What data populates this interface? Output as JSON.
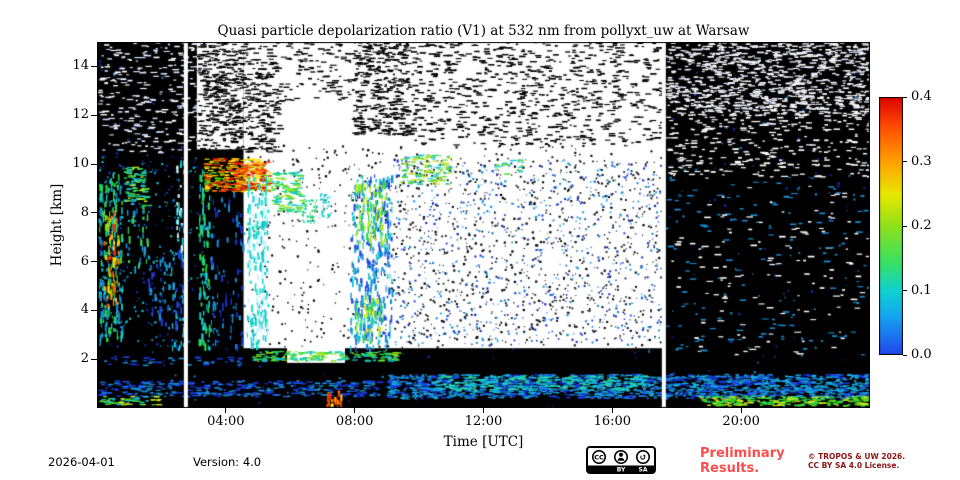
{
  "chart_data": {
    "type": "heatmap",
    "title": "Quasi particle depolarization ratio (V1) at 532 nm from pollyxt_uw at Warsaw",
    "xlabel": "Time [UTC]",
    "ylabel": "Height [km]",
    "xlim": [
      0,
      24
    ],
    "ylim": [
      0,
      15
    ],
    "x_ticks": [
      {
        "v": 4,
        "label": "04:00"
      },
      {
        "v": 8,
        "label": "08:00"
      },
      {
        "v": 12,
        "label": "12:00"
      },
      {
        "v": 16,
        "label": "16:00"
      },
      {
        "v": 20,
        "label": "20:00"
      }
    ],
    "y_ticks": [
      {
        "v": 2,
        "label": "2"
      },
      {
        "v": 4,
        "label": "4"
      },
      {
        "v": 6,
        "label": "6"
      },
      {
        "v": 8,
        "label": "8"
      },
      {
        "v": 10,
        "label": "10"
      },
      {
        "v": 12,
        "label": "12"
      },
      {
        "v": 14,
        "label": "14"
      }
    ],
    "colorbar": {
      "min": 0.0,
      "max": 0.4,
      "ticks": [
        {
          "v": 0.0,
          "label": "0.0"
        },
        {
          "v": 0.1,
          "label": "0.1"
        },
        {
          "v": 0.2,
          "label": "0.2"
        },
        {
          "v": 0.3,
          "label": "0.3"
        },
        {
          "v": 0.4,
          "label": "0.4"
        }
      ],
      "stops": [
        [
          0.0,
          "#2244ee"
        ],
        [
          0.15,
          "#14a6f0"
        ],
        [
          0.25,
          "#10d2cf"
        ],
        [
          0.35,
          "#35e06a"
        ],
        [
          0.5,
          "#8fe019"
        ],
        [
          0.62,
          "#e8e800"
        ],
        [
          0.75,
          "#ffa000"
        ],
        [
          0.88,
          "#ff5000"
        ],
        [
          1.0,
          "#dd0000"
        ]
      ]
    },
    "background": "#000000",
    "no_data_color": "#ffffff",
    "gap_times_utc": [
      2.76,
      17.6
    ],
    "features": [
      {
        "type": "rect",
        "t": [
          0,
          24
        ],
        "h": [
          0,
          15
        ],
        "color": "#000000"
      },
      {
        "type": "noise",
        "t": [
          0,
          24
        ],
        "h": [
          0,
          15
        ],
        "colors": [
          "#1432c8",
          "#1a8cd8"
        ],
        "density": 0.004,
        "style": "dot"
      },
      {
        "type": "noise",
        "t": [
          0,
          3.1
        ],
        "h": [
          10.5,
          15
        ],
        "colors": [
          "#ffffff",
          "#cfe0ff"
        ],
        "density": 0.1,
        "style": "h"
      },
      {
        "type": "noise",
        "t": [
          0,
          3.1
        ],
        "h": [
          2.5,
          10.5
        ],
        "colors": [
          "#1690d8",
          "#17c8d0",
          "#1432c8"
        ],
        "density": 0.03,
        "style": "dot"
      },
      {
        "type": "noise",
        "t": [
          0.05,
          0.78
        ],
        "h": [
          2.8,
          9.6
        ],
        "colors": [
          "#17c8d0",
          "#2ad84e",
          "#1690d8"
        ],
        "density": 0.42,
        "style": "v"
      },
      {
        "type": "noise",
        "t": [
          0.2,
          0.65
        ],
        "h": [
          4.2,
          8.1
        ],
        "colors": [
          "#ffe000",
          "#ff8c00",
          "#e83000",
          "#7ae000"
        ],
        "density": 0.5,
        "style": "v"
      },
      {
        "type": "noise",
        "t": [
          0.82,
          1.5
        ],
        "h": [
          8.3,
          9.9
        ],
        "colors": [
          "#2ad84e",
          "#b8e818",
          "#17c8d0"
        ],
        "density": 0.45,
        "style": "h"
      },
      {
        "type": "noise",
        "t": [
          0.85,
          1.55
        ],
        "h": [
          5.8,
          8.3
        ],
        "colors": [
          "#189ae0",
          "#3ad060"
        ],
        "density": 0.22,
        "style": "v"
      },
      {
        "type": "noise",
        "t": [
          1.55,
          2.25
        ],
        "h": [
          3.2,
          6.3
        ],
        "colors": [
          "#189ae0",
          "#2244e8"
        ],
        "density": 0.2,
        "style": "v"
      },
      {
        "type": "noise",
        "t": [
          2.3,
          2.72
        ],
        "h": [
          2.4,
          6.6
        ],
        "colors": [
          "#2244e8",
          "#17c8d0"
        ],
        "density": 0.28,
        "style": "v"
      },
      {
        "type": "noise",
        "t": [
          2.45,
          2.72
        ],
        "h": [
          6.6,
          10.2
        ],
        "colors": [
          "#17c8d0",
          "#d8f6ff"
        ],
        "density": 0.4,
        "style": "v"
      },
      {
        "type": "rect",
        "t": [
          4.55,
          17.57
        ],
        "h": [
          2.45,
          15
        ],
        "color": "#ffffff"
      },
      {
        "type": "rect",
        "t": [
          3.1,
          4.55
        ],
        "h": [
          10.6,
          15
        ],
        "color": "#ffffff"
      },
      {
        "type": "rect",
        "t": [
          5.9,
          7.7
        ],
        "h": [
          1.85,
          2.6
        ],
        "color": "#ffffff"
      },
      {
        "type": "noise",
        "t": [
          3.1,
          4.55
        ],
        "h": [
          10.6,
          15
        ],
        "colors": [
          "#000000"
        ],
        "density": 0.32,
        "style": "h"
      },
      {
        "type": "noise",
        "t": [
          4.55,
          5.6
        ],
        "h": [
          10.5,
          15
        ],
        "colors": [
          "#000000"
        ],
        "density": 0.22,
        "style": "h"
      },
      {
        "type": "noise",
        "t": [
          5.6,
          7.9
        ],
        "h": [
          12.6,
          15
        ],
        "colors": [
          "#000000"
        ],
        "density": 0.1,
        "style": "h"
      },
      {
        "type": "noise",
        "t": [
          7.9,
          9.6
        ],
        "h": [
          11.2,
          15
        ],
        "colors": [
          "#000000"
        ],
        "density": 0.3,
        "style": "h"
      },
      {
        "type": "noise",
        "t": [
          9.6,
          17.5
        ],
        "h": [
          10.8,
          15
        ],
        "colors": [
          "#000000"
        ],
        "density": 0.12,
        "style": "h"
      },
      {
        "type": "noise",
        "t": [
          4.6,
          17.5
        ],
        "h": [
          2.5,
          10.8
        ],
        "colors": [
          "#000000"
        ],
        "density": 0.02,
        "style": "dot"
      },
      {
        "type": "noise",
        "t": [
          9.2,
          17.5
        ],
        "h": [
          2.6,
          10.2
        ],
        "colors": [
          "#101010",
          "#1432c8",
          "#1690d8"
        ],
        "density": 0.045,
        "style": "dot"
      },
      {
        "type": "noise",
        "t": [
          3.15,
          3.5
        ],
        "h": [
          2.5,
          9.8
        ],
        "colors": [
          "#2ad84e",
          "#17c8d0"
        ],
        "density": 0.4,
        "style": "v"
      },
      {
        "type": "noise",
        "t": [
          3.5,
          4.55
        ],
        "h": [
          2.5,
          8.9
        ],
        "colors": [
          "#1432c8",
          "#1690d8"
        ],
        "density": 0.12,
        "style": "v"
      },
      {
        "type": "noise",
        "t": [
          3.3,
          5.35
        ],
        "h": [
          8.9,
          10.25
        ],
        "colors": [
          "#e81000",
          "#ff7800",
          "#ffe000",
          "#50e000"
        ],
        "density": 0.55,
        "style": "h"
      },
      {
        "type": "noise",
        "t": [
          4.25,
          5.15
        ],
        "h": [
          9.0,
          10.1
        ],
        "colors": [
          "#e00000",
          "#ff5000",
          "#ffb000"
        ],
        "density": 0.5,
        "style": "h"
      },
      {
        "type": "noise",
        "t": [
          4.65,
          5.3
        ],
        "h": [
          2.5,
          9.6
        ],
        "colors": [
          "#17c8d0",
          "#10e0c0",
          "#c8f2ff"
        ],
        "density": 0.5,
        "style": "v"
      },
      {
        "type": "noise",
        "t": [
          5.4,
          6.3
        ],
        "h": [
          8.0,
          9.7
        ],
        "colors": [
          "#2ad84e",
          "#17c8d0",
          "#8ae018"
        ],
        "density": 0.4,
        "style": "h"
      },
      {
        "type": "noise",
        "t": [
          6.35,
          6.8
        ],
        "h": [
          7.6,
          8.6
        ],
        "colors": [
          "#17c8d0",
          "#2ad84e"
        ],
        "density": 0.35,
        "style": "dot"
      },
      {
        "type": "noise",
        "t": [
          6.9,
          7.25
        ],
        "h": [
          7.8,
          8.8
        ],
        "colors": [
          "#17c8d0"
        ],
        "density": 0.25,
        "style": "dot"
      },
      {
        "type": "noise",
        "t": [
          7.85,
          9.15
        ],
        "h": [
          2.5,
          9.6
        ],
        "colors": [
          "#1690d8",
          "#2244e8",
          "#17c8d0"
        ],
        "density": 0.35,
        "style": "v"
      },
      {
        "type": "noise",
        "t": [
          8.0,
          8.95
        ],
        "h": [
          6.8,
          9.3
        ],
        "colors": [
          "#2ad84e",
          "#b8e818"
        ],
        "density": 0.4,
        "style": "v"
      },
      {
        "type": "noise",
        "t": [
          8.0,
          8.85
        ],
        "h": [
          2.8,
          4.6
        ],
        "colors": [
          "#2ad84e",
          "#d8e818",
          "#17c8d0"
        ],
        "density": 0.45,
        "style": "v"
      },
      {
        "type": "noise",
        "t": [
          9.4,
          10.9
        ],
        "h": [
          9.2,
          10.4
        ],
        "colors": [
          "#50d838",
          "#c0e020",
          "#17c8d0"
        ],
        "density": 0.3,
        "style": "h"
      },
      {
        "type": "noise",
        "t": [
          12.3,
          13.2
        ],
        "h": [
          9.6,
          10.2
        ],
        "colors": [
          "#50d838",
          "#17c8d0"
        ],
        "density": 0.15,
        "style": "h"
      },
      {
        "type": "noise",
        "t": [
          17.65,
          24
        ],
        "h": [
          12,
          15
        ],
        "colors": [
          "#ffffff",
          "#e8eefc"
        ],
        "density": 0.26,
        "style": "h"
      },
      {
        "type": "noise",
        "t": [
          17.65,
          24
        ],
        "h": [
          9.5,
          12
        ],
        "colors": [
          "#ffffff"
        ],
        "density": 0.09,
        "style": "h"
      },
      {
        "type": "noise",
        "t": [
          17.65,
          24
        ],
        "h": [
          2.2,
          9.5
        ],
        "colors": [
          "#ffffff",
          "#1690d8"
        ],
        "density": 0.03,
        "style": "h"
      },
      {
        "type": "noise",
        "t": [
          0,
          9.2
        ],
        "h": [
          0.5,
          1.15
        ],
        "colors": [
          "#1a3ee8",
          "#1690d8"
        ],
        "density": 0.3,
        "style": "h"
      },
      {
        "type": "noise",
        "t": [
          9,
          24
        ],
        "h": [
          0.42,
          1.4
        ],
        "colors": [
          "#1690d8",
          "#18b4e8",
          "#1a3ee8"
        ],
        "density": 0.55,
        "style": "h"
      },
      {
        "type": "noise",
        "t": [
          10.5,
          17
        ],
        "h": [
          0.75,
          1.35
        ],
        "colors": [
          "#17c8d0",
          "#2fd8a0"
        ],
        "density": 0.3,
        "style": "h"
      },
      {
        "type": "noise",
        "t": [
          0,
          1.9
        ],
        "h": [
          0.15,
          0.5
        ],
        "colors": [
          "#50e018",
          "#17c8d0",
          "#c8e818"
        ],
        "density": 0.4,
        "style": "h"
      },
      {
        "type": "noise",
        "t": [
          18.6,
          24
        ],
        "h": [
          0.12,
          0.5
        ],
        "colors": [
          "#50e018",
          "#d8e818",
          "#2ad84e"
        ],
        "density": 0.55,
        "style": "h"
      },
      {
        "type": "noise",
        "t": [
          4.8,
          9.3
        ],
        "h": [
          1.95,
          2.35
        ],
        "colors": [
          "#17c8d0",
          "#2ad84e",
          "#8ae018"
        ],
        "density": 0.5,
        "style": "h"
      },
      {
        "type": "noise",
        "t": [
          0,
          4.6
        ],
        "h": [
          1.75,
          2.15
        ],
        "colors": [
          "#1a3ee8",
          "#1690d8"
        ],
        "density": 0.12,
        "style": "h"
      },
      {
        "type": "noise",
        "t": [
          7.1,
          7.58
        ],
        "h": [
          0.05,
          0.8
        ],
        "colors": [
          "#ff9000",
          "#ffd800",
          "#f04000"
        ],
        "density": 0.75,
        "style": "v"
      },
      {
        "type": "vline",
        "t": 2.76,
        "w": 4,
        "color": "#ffffff"
      },
      {
        "type": "vline",
        "t": 17.6,
        "w": 4,
        "color": "#ffffff"
      }
    ]
  },
  "footer": {
    "date": "2026-04-01",
    "version": "Version: 4.0",
    "preliminary": [
      "Preliminary",
      "Results."
    ],
    "preliminary_color": "#fb4d4d",
    "copyright": [
      "© TROPOS & UW 2026.",
      "CC BY SA 4.0 License."
    ],
    "copyright_color": "#8b1515",
    "badge": {
      "cc": "CC",
      "by": "BY",
      "sa": "SA"
    }
  }
}
